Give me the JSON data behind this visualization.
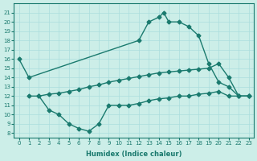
{
  "line1_x": [
    0,
    1,
    12,
    13,
    14,
    14.5,
    15,
    16,
    17,
    18,
    19,
    20,
    21,
    22,
    23
  ],
  "line1_y": [
    16,
    14,
    18,
    20,
    20.5,
    21,
    20,
    20,
    19.5,
    18.5,
    15.5,
    13.5,
    13,
    12,
    12
  ],
  "line2_x": [
    1,
    2,
    3,
    4,
    5,
    6,
    7,
    8,
    9,
    10,
    11,
    12,
    13,
    14,
    15,
    16,
    17,
    18,
    19,
    20,
    21,
    22,
    23
  ],
  "line2_y": [
    12,
    12,
    12.2,
    12.3,
    12.5,
    12.7,
    13.0,
    13.2,
    13.5,
    13.7,
    13.9,
    14.1,
    14.3,
    14.5,
    14.6,
    14.7,
    14.8,
    14.9,
    15.0,
    15.5,
    14,
    12,
    12
  ],
  "line3_x": [
    2,
    3,
    4,
    5,
    6,
    7,
    8,
    9,
    10,
    11,
    12,
    13,
    14,
    15,
    16,
    17,
    18,
    19,
    20,
    21,
    22,
    23
  ],
  "line3_y": [
    12,
    10.5,
    10,
    9,
    8.5,
    8.2,
    9,
    11,
    11,
    11,
    11.2,
    11.5,
    11.7,
    11.8,
    12,
    12,
    12.2,
    12.3,
    12.5,
    12,
    12,
    12
  ],
  "xlabel": "Humidex (Indice chaleur)",
  "xlim": [
    -0.5,
    23.5
  ],
  "ylim": [
    7.5,
    22
  ],
  "yticks": [
    8,
    9,
    10,
    11,
    12,
    13,
    14,
    15,
    16,
    17,
    18,
    19,
    20,
    21
  ],
  "xticks": [
    0,
    1,
    2,
    3,
    4,
    5,
    6,
    7,
    8,
    9,
    10,
    11,
    12,
    13,
    14,
    15,
    16,
    17,
    18,
    19,
    20,
    21,
    22,
    23
  ],
  "line_color": "#1a7a6e",
  "bg_color": "#cceee8",
  "grid_color": "#aadddd"
}
